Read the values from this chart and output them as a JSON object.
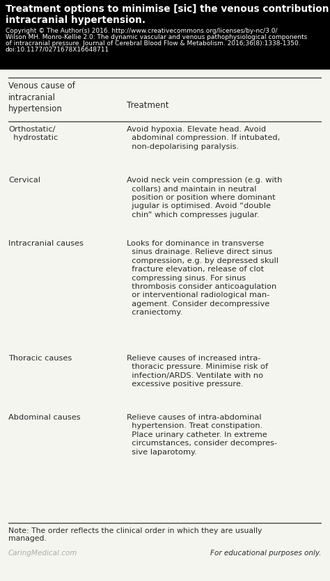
{
  "title_line1": "Treatment options to minimise [sic] the venous contribution of",
  "title_line2": "intracranial hypertension.",
  "copyright_line1": "Copyright © The Author(s) 2016. http://www.creativecommons.org/licenses/by-nc/3.0/",
  "copyright_line2": "Wilson MH. Monro-Kellie 2.0: The dynamic vascular and venous pathophysiological components",
  "copyright_line3": "of intracranial pressure. Journal of Cerebral Blood Flow & Metabolism. 2016;36(8):1338-1350.",
  "copyright_line4": "doi:10.1177/0271678X16648711",
  "col1_header": "Venous cause of\nintracranial\nhypertension",
  "col2_header": "Treatment",
  "rows": [
    {
      "cause": "Orthostatic/\n  hydrostatic",
      "treatment": "Avoid hypoxia. Elevate head. Avoid\n  abdominal compression. If intubated,\n  non-depolarising paralysis."
    },
    {
      "cause": "Cervical",
      "treatment": "Avoid neck vein compression (e.g. with\n  collars) and maintain in neutral\n  position or position where dominant\n  jugular is optimised. Avoid “double\n  chin” which compresses jugular."
    },
    {
      "cause": "Intracranial causes",
      "treatment": "Looks for dominance in transverse\n  sinus drainage. Relieve direct sinus\n  compression, e.g. by depressed skull\n  fracture elevation, release of clot\n  compressing sinus. For sinus\n  thrombosis consider anticoagulation\n  or interventional radiological man-\n  agement. Consider decompressive\n  craniectomy."
    },
    {
      "cause": "Thoracic causes",
      "treatment": "Relieve causes of increased intra-\n  thoracic pressure. Minimise risk of\n  infection/ARDS. Ventilate with no\n  excessive positive pressure."
    },
    {
      "cause": "Abdominal causes",
      "treatment": "Relieve causes of intra-abdominal\n  hypertension. Treat constipation.\n  Place urinary catheter. In extreme\n  circumstances, consider decompres-\n  sive laparotomy."
    }
  ],
  "note_line1": "Note: The order reflects the clinical order in which they are usually",
  "note_line2": "managed.",
  "footer_left": "CaringMedical.com",
  "footer_right": "For educational purposes only.",
  "header_bg": "#000000",
  "header_text_color": "#ffffff",
  "table_text_color": "#2a2a2a",
  "note_text_color": "#2a2a2a",
  "footer_left_color": "#aaaaaa",
  "footer_right_color": "#2a2a2a",
  "line_color": "#555555",
  "bg_color": "#f5f5f0",
  "title_fontsize": 9.8,
  "copyright_fontsize": 6.5,
  "col_header_fontsize": 8.5,
  "body_fontsize": 8.2,
  "note_fontsize": 7.8,
  "footer_fontsize": 7.5
}
